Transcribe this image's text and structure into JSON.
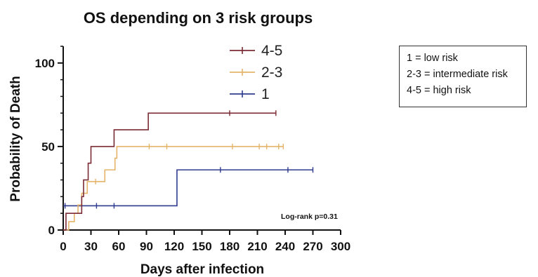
{
  "chart_data": {
    "type": "line",
    "subtype": "kaplan-meier step",
    "title": "OS depending on 3 risk groups",
    "xlabel": "Days after infection",
    "ylabel": "Probability of Death",
    "xlim": [
      0,
      300
    ],
    "ylim": [
      0,
      110
    ],
    "x_ticks": [
      0,
      30,
      60,
      90,
      120,
      150,
      180,
      210,
      240,
      270,
      300
    ],
    "y_ticks": [
      0,
      50,
      100
    ],
    "grid": false,
    "legend_position": "top-center",
    "annotation": "Log-rank p=0.31",
    "series": [
      {
        "name": "4-5",
        "color": "#7b2b35",
        "steps": [
          [
            0,
            0
          ],
          [
            3,
            10
          ],
          [
            20,
            20
          ],
          [
            22,
            30
          ],
          [
            27,
            40
          ],
          [
            30,
            50
          ],
          [
            55,
            60
          ],
          [
            92,
            70
          ],
          [
            230,
            70
          ]
        ],
        "censored": [
          180,
          230
        ]
      },
      {
        "name": "2-3",
        "color": "#e5b46a",
        "steps": [
          [
            0,
            0
          ],
          [
            6,
            5
          ],
          [
            12,
            10
          ],
          [
            16,
            15
          ],
          [
            20,
            22
          ],
          [
            26,
            29
          ],
          [
            45,
            36
          ],
          [
            56,
            43
          ],
          [
            58,
            50
          ],
          [
            238,
            50
          ]
        ],
        "censored": [
          35,
          93,
          112,
          183,
          212,
          220,
          233,
          238
        ]
      },
      {
        "name": "1",
        "color": "#2e3b8f",
        "steps": [
          [
            0,
            14.5
          ],
          [
            123,
            14.5
          ],
          [
            123,
            36
          ],
          [
            270,
            36
          ]
        ],
        "censored": [
          2,
          36,
          55,
          170,
          243,
          270
        ]
      }
    ]
  },
  "legend_box": {
    "lines": [
      "1 = low risk",
      "2-3 = intermediate risk",
      "4-5 = high risk"
    ]
  }
}
